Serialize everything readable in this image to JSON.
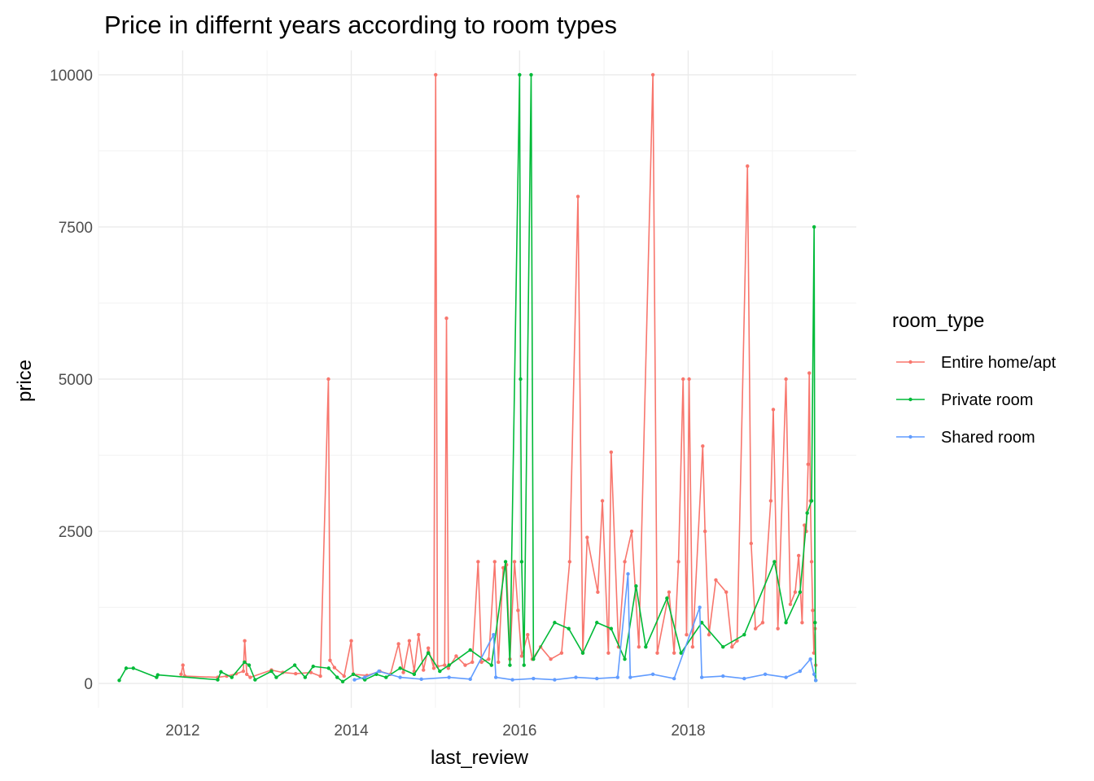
{
  "chart_data": {
    "type": "line",
    "title": "Price in differnt years according to room types",
    "xlabel": "last_review",
    "ylabel": "price",
    "xlim": [
      "2011-01-01",
      "2019-12-31"
    ],
    "ylim": [
      -400,
      10400
    ],
    "x_ticks": [
      {
        "date": "2012-01-01",
        "label": "2012"
      },
      {
        "date": "2014-01-01",
        "label": "2014"
      },
      {
        "date": "2016-01-01",
        "label": "2016"
      },
      {
        "date": "2018-01-01",
        "label": "2018"
      }
    ],
    "x_minor_ticks": [
      "2011-01-01",
      "2013-01-01",
      "2015-01-01",
      "2017-01-01",
      "2019-01-01"
    ],
    "y_ticks": [
      0,
      2500,
      5000,
      7500,
      10000
    ],
    "y_minor_ticks": [
      1250,
      3750,
      6250,
      8750
    ],
    "grid": true,
    "legend": {
      "title": "room_type",
      "position": "right"
    },
    "series": [
      {
        "name": "Entire home/apt",
        "color": "#F8766D",
        "points": [
          [
            "2011-12-25",
            150
          ],
          [
            "2012-01-02",
            300
          ],
          [
            "2012-01-10",
            120
          ],
          [
            "2012-06-01",
            100
          ],
          [
            "2012-07-10",
            120
          ],
          [
            "2012-08-20",
            160
          ],
          [
            "2012-09-20",
            200
          ],
          [
            "2012-09-26",
            700
          ],
          [
            "2012-10-05",
            150
          ],
          [
            "2012-10-20",
            100
          ],
          [
            "2013-01-20",
            220
          ],
          [
            "2013-03-10",
            180
          ],
          [
            "2013-05-05",
            160
          ],
          [
            "2013-07-10",
            180
          ],
          [
            "2013-08-20",
            120
          ],
          [
            "2013-09-24",
            5000
          ],
          [
            "2013-10-01",
            380
          ],
          [
            "2013-10-20",
            260
          ],
          [
            "2013-12-01",
            120
          ],
          [
            "2014-01-01",
            700
          ],
          [
            "2014-01-10",
            150
          ],
          [
            "2014-03-10",
            130
          ],
          [
            "2014-05-05",
            200
          ],
          [
            "2014-06-20",
            150
          ],
          [
            "2014-07-25",
            650
          ],
          [
            "2014-08-15",
            180
          ],
          [
            "2014-09-10",
            700
          ],
          [
            "2014-10-01",
            200
          ],
          [
            "2014-10-20",
            800
          ],
          [
            "2014-11-10",
            220
          ],
          [
            "2014-12-01",
            580
          ],
          [
            "2014-12-25",
            250
          ],
          [
            "2015-01-02",
            10000
          ],
          [
            "2015-01-10",
            280
          ],
          [
            "2015-02-10",
            300
          ],
          [
            "2015-02-18",
            6000
          ],
          [
            "2015-02-26",
            250
          ],
          [
            "2015-04-01",
            450
          ],
          [
            "2015-05-10",
            300
          ],
          [
            "2015-06-10",
            350
          ],
          [
            "2015-07-05",
            2000
          ],
          [
            "2015-07-20",
            350
          ],
          [
            "2015-08-20",
            400
          ],
          [
            "2015-09-15",
            2000
          ],
          [
            "2015-10-01",
            350
          ],
          [
            "2015-10-22",
            1900
          ],
          [
            "2015-11-05",
            1950
          ],
          [
            "2015-11-20",
            400
          ],
          [
            "2015-12-10",
            2000
          ],
          [
            "2015-12-25",
            1200
          ],
          [
            "2016-01-10",
            450
          ],
          [
            "2016-02-05",
            800
          ],
          [
            "2016-02-25",
            400
          ],
          [
            "2016-04-01",
            600
          ],
          [
            "2016-05-15",
            400
          ],
          [
            "2016-07-01",
            500
          ],
          [
            "2016-08-05",
            2000
          ],
          [
            "2016-09-10",
            8000
          ],
          [
            "2016-10-01",
            500
          ],
          [
            "2016-10-20",
            2400
          ],
          [
            "2016-12-05",
            1500
          ],
          [
            "2016-12-25",
            3000
          ],
          [
            "2017-01-20",
            500
          ],
          [
            "2017-02-01",
            3800
          ],
          [
            "2017-03-05",
            600
          ],
          [
            "2017-04-01",
            2000
          ],
          [
            "2017-05-01",
            2500
          ],
          [
            "2017-06-01",
            600
          ],
          [
            "2017-08-01",
            10000
          ],
          [
            "2017-08-20",
            500
          ],
          [
            "2017-10-10",
            1500
          ],
          [
            "2017-11-01",
            500
          ],
          [
            "2017-11-20",
            2000
          ],
          [
            "2017-12-10",
            5000
          ],
          [
            "2017-12-25",
            800
          ],
          [
            "2018-01-05",
            5000
          ],
          [
            "2018-01-20",
            600
          ],
          [
            "2018-03-05",
            3900
          ],
          [
            "2018-03-15",
            2500
          ],
          [
            "2018-04-01",
            800
          ],
          [
            "2018-05-01",
            1700
          ],
          [
            "2018-06-15",
            1500
          ],
          [
            "2018-07-10",
            600
          ],
          [
            "2018-08-01",
            700
          ],
          [
            "2018-09-15",
            8500
          ],
          [
            "2018-10-01",
            2300
          ],
          [
            "2018-10-20",
            900
          ],
          [
            "2018-11-20",
            1000
          ],
          [
            "2018-12-25",
            3000
          ],
          [
            "2019-01-05",
            4500
          ],
          [
            "2019-01-25",
            900
          ],
          [
            "2019-03-01",
            5000
          ],
          [
            "2019-03-20",
            1300
          ],
          [
            "2019-04-10",
            1500
          ],
          [
            "2019-04-25",
            2100
          ],
          [
            "2019-05-10",
            1000
          ],
          [
            "2019-05-20",
            2600
          ],
          [
            "2019-05-28",
            2500
          ],
          [
            "2019-06-05",
            3600
          ],
          [
            "2019-06-10",
            5100
          ],
          [
            "2019-06-15",
            3000
          ],
          [
            "2019-06-20",
            2000
          ],
          [
            "2019-06-25",
            1200
          ],
          [
            "2019-06-30",
            500
          ],
          [
            "2019-07-05",
            900
          ],
          [
            "2019-07-08",
            300
          ]
        ]
      },
      {
        "name": "Private room",
        "color": "#00BA38",
        "points": [
          [
            "2011-04-01",
            50
          ],
          [
            "2011-05-01",
            250
          ],
          [
            "2011-06-01",
            250
          ],
          [
            "2011-09-10",
            100
          ],
          [
            "2011-09-15",
            140
          ],
          [
            "2012-06-01",
            60
          ],
          [
            "2012-06-15",
            190
          ],
          [
            "2012-08-01",
            100
          ],
          [
            "2012-09-25",
            350
          ],
          [
            "2012-10-15",
            300
          ],
          [
            "2012-11-10",
            60
          ],
          [
            "2013-01-20",
            200
          ],
          [
            "2013-02-10",
            100
          ],
          [
            "2013-05-01",
            300
          ],
          [
            "2013-06-15",
            100
          ],
          [
            "2013-07-20",
            280
          ],
          [
            "2013-09-25",
            250
          ],
          [
            "2013-11-01",
            100
          ],
          [
            "2013-11-25",
            30
          ],
          [
            "2014-01-10",
            150
          ],
          [
            "2014-03-01",
            60
          ],
          [
            "2014-04-20",
            150
          ],
          [
            "2014-06-01",
            100
          ],
          [
            "2014-08-01",
            250
          ],
          [
            "2014-10-01",
            150
          ],
          [
            "2014-12-01",
            500
          ],
          [
            "2015-01-20",
            200
          ],
          [
            "2015-03-01",
            300
          ],
          [
            "2015-06-01",
            550
          ],
          [
            "2015-09-01",
            300
          ],
          [
            "2015-11-01",
            2000
          ],
          [
            "2015-11-20",
            300
          ],
          [
            "2016-01-01",
            10000
          ],
          [
            "2016-01-05",
            5000
          ],
          [
            "2016-01-10",
            2000
          ],
          [
            "2016-01-20",
            300
          ],
          [
            "2016-02-20",
            10000
          ],
          [
            "2016-03-01",
            400
          ],
          [
            "2016-06-01",
            1000
          ],
          [
            "2016-08-01",
            900
          ],
          [
            "2016-10-01",
            500
          ],
          [
            "2016-12-01",
            1000
          ],
          [
            "2017-02-01",
            900
          ],
          [
            "2017-04-01",
            400
          ],
          [
            "2017-05-20",
            1600
          ],
          [
            "2017-07-01",
            600
          ],
          [
            "2017-10-01",
            1400
          ],
          [
            "2017-12-01",
            500
          ],
          [
            "2018-03-01",
            1000
          ],
          [
            "2018-06-01",
            600
          ],
          [
            "2018-09-01",
            800
          ],
          [
            "2019-01-10",
            2000
          ],
          [
            "2019-03-01",
            1000
          ],
          [
            "2019-05-01",
            1500
          ],
          [
            "2019-06-01",
            2800
          ],
          [
            "2019-06-20",
            3000
          ],
          [
            "2019-07-01",
            7500
          ],
          [
            "2019-07-05",
            1000
          ],
          [
            "2019-07-08",
            50
          ]
        ]
      },
      {
        "name": "Shared room",
        "color": "#619CFF",
        "points": [
          [
            "2014-01-15",
            60
          ],
          [
            "2014-03-01",
            100
          ],
          [
            "2014-05-01",
            200
          ],
          [
            "2014-08-01",
            100
          ],
          [
            "2014-11-01",
            70
          ],
          [
            "2015-03-01",
            100
          ],
          [
            "2015-06-01",
            70
          ],
          [
            "2015-09-10",
            800
          ],
          [
            "2015-09-20",
            100
          ],
          [
            "2015-12-01",
            60
          ],
          [
            "2016-03-01",
            80
          ],
          [
            "2016-06-01",
            60
          ],
          [
            "2016-09-01",
            100
          ],
          [
            "2016-12-01",
            80
          ],
          [
            "2017-03-01",
            100
          ],
          [
            "2017-04-15",
            1800
          ],
          [
            "2017-04-25",
            100
          ],
          [
            "2017-08-01",
            150
          ],
          [
            "2017-11-01",
            80
          ],
          [
            "2018-02-20",
            1250
          ],
          [
            "2018-03-01",
            100
          ],
          [
            "2018-06-01",
            120
          ],
          [
            "2018-09-01",
            80
          ],
          [
            "2018-12-01",
            150
          ],
          [
            "2019-03-01",
            100
          ],
          [
            "2019-05-01",
            200
          ],
          [
            "2019-06-15",
            400
          ],
          [
            "2019-07-01",
            150
          ],
          [
            "2019-07-08",
            50
          ]
        ]
      }
    ]
  }
}
